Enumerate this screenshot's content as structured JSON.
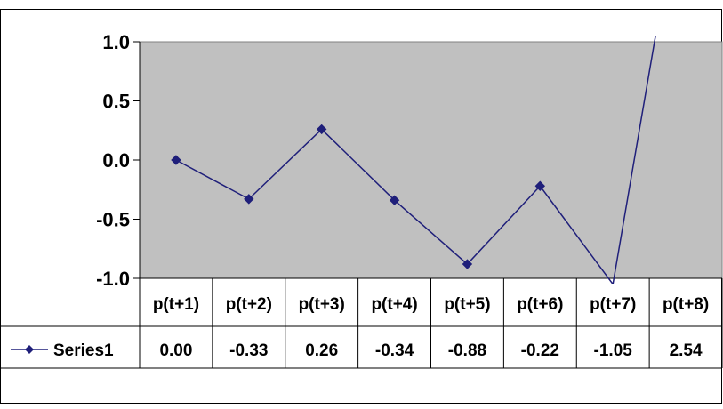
{
  "chart_data": {
    "type": "line",
    "categories": [
      "p(t+1)",
      "p(t+2)",
      "p(t+3)",
      "p(t+4)",
      "p(t+5)",
      "p(t+6)",
      "p(t+7)",
      "p(t+8)"
    ],
    "series": [
      {
        "name": "Series1",
        "values": [
          0.0,
          -0.33,
          0.26,
          -0.34,
          -0.88,
          -0.22,
          -1.05,
          2.54
        ],
        "value_labels": [
          "0.00",
          "-0.33",
          "0.26",
          "-0.34",
          "-0.88",
          "-0.22",
          "-1.05",
          "2.54"
        ],
        "color": "#1f1f7a"
      }
    ],
    "ylim": [
      -1.0,
      1.0
    ],
    "yticks": [
      1.0,
      0.5,
      0.0,
      -0.5,
      -1.0
    ],
    "ytick_labels": [
      "1.0",
      "0.5",
      "0.0",
      "-0.5",
      "-1.0"
    ],
    "grid": false,
    "legend": "data-table-left",
    "data_table": true,
    "plot_background": "#c0c0c0",
    "page_background": "#ffffff"
  }
}
